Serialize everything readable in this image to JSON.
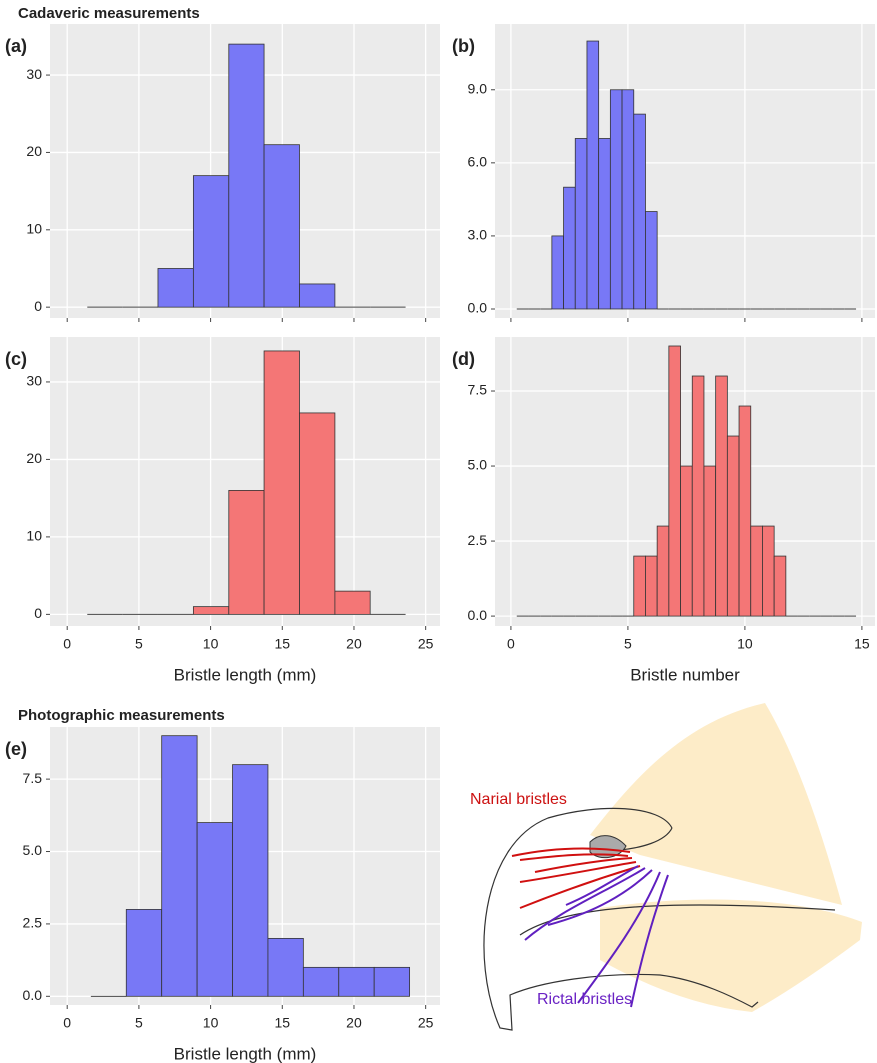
{
  "sections": [
    "Cadaveric measurements",
    "Photographic measurements"
  ],
  "diagram": {
    "labels": [
      "Narial bristles",
      "Rictal bristles"
    ]
  },
  "chart_data": [
    {
      "type": "histogram",
      "panel": "(a)",
      "color": "#7878f6",
      "grid": true,
      "xtick_labels": false,
      "bins": [
        1.4,
        3.87,
        6.33,
        8.8,
        11.27,
        13.73,
        16.2,
        18.67,
        21.13,
        23.6
      ],
      "counts": [
        0,
        0,
        5,
        17,
        34,
        21,
        3,
        0,
        0
      ],
      "xlim": [
        -1.2,
        26
      ],
      "xticks": [
        0,
        5,
        10,
        15,
        20,
        25
      ],
      "ylim": [
        -1.4,
        36.6
      ],
      "yticks": [
        0,
        10,
        20,
        30
      ]
    },
    {
      "type": "histogram",
      "panel": "(b)",
      "color": "#7878f6",
      "grid": true,
      "xtick_labels": false,
      "bins": [
        0.25,
        0.75,
        1.25,
        1.75,
        2.25,
        2.75,
        3.25,
        3.75,
        4.25,
        4.75,
        5.25,
        5.75,
        6.25,
        6.75,
        7.25,
        7.75,
        8.25,
        8.75,
        9.25,
        9.75,
        10.25,
        10.75,
        11.25,
        11.75,
        12.25,
        12.75,
        13.25,
        13.75,
        14.25,
        14.75
      ],
      "counts": [
        0,
        0,
        0,
        3,
        5,
        7,
        11,
        7,
        9,
        9,
        8,
        4,
        0,
        0,
        0,
        0,
        0,
        0,
        0,
        0,
        0,
        0,
        0,
        0,
        0,
        0,
        0,
        0,
        0
      ],
      "xlim": [
        -0.68,
        15.56
      ],
      "xticks": [
        0,
        5,
        10,
        15
      ],
      "ylim": [
        -0.37,
        11.7
      ],
      "yticks": [
        {
          "value": 0,
          "label": "0.0"
        },
        {
          "value": 3,
          "label": "3.0"
        },
        {
          "value": 6,
          "label": "6.0"
        },
        {
          "value": 9,
          "label": "9.0"
        }
      ]
    },
    {
      "type": "histogram",
      "panel": "(c)",
      "color": "#f47676",
      "grid": true,
      "x_label": "Bristle length (mm)",
      "bins": [
        1.4,
        3.87,
        6.33,
        8.8,
        11.27,
        13.73,
        16.2,
        18.67,
        21.13,
        23.6
      ],
      "counts": [
        0,
        0,
        0,
        1,
        16,
        34,
        26,
        3,
        0
      ],
      "xlim": [
        -1.2,
        26
      ],
      "xticks": [
        0,
        5,
        10,
        15,
        20,
        25
      ],
      "ylim": [
        -1.5,
        35.8
      ],
      "yticks": [
        0,
        10,
        20,
        30
      ]
    },
    {
      "type": "histogram",
      "panel": "(d)",
      "color": "#f47676",
      "grid": true,
      "x_label": "Bristle number",
      "bins": [
        0.25,
        0.75,
        1.25,
        1.75,
        2.25,
        2.75,
        3.25,
        3.75,
        4.25,
        4.75,
        5.25,
        5.75,
        6.25,
        6.75,
        7.25,
        7.75,
        8.25,
        8.75,
        9.25,
        9.75,
        10.25,
        10.75,
        11.25,
        11.75,
        12.25,
        12.75,
        13.25,
        13.75,
        14.25,
        14.75
      ],
      "counts": [
        0,
        0,
        0,
        0,
        0,
        0,
        0,
        0,
        0,
        0,
        2,
        2,
        3,
        9,
        5,
        8,
        5,
        8,
        6,
        7,
        3,
        3,
        2,
        0,
        0,
        0,
        0,
        0,
        0
      ],
      "xlim": [
        -0.68,
        15.56
      ],
      "xticks": [
        0,
        5,
        10,
        15
      ],
      "ylim": [
        -0.33,
        9.3
      ],
      "yticks": [
        {
          "value": 0,
          "label": "0.0"
        },
        2.5,
        {
          "value": 5,
          "label": "5.0"
        },
        7.5
      ]
    },
    {
      "type": "histogram",
      "panel": "(e)",
      "color": "#7878f6",
      "grid": true,
      "x_label": "Bristle length (mm)",
      "bins": [
        1.65,
        4.12,
        6.59,
        9.06,
        11.53,
        14,
        16.47,
        18.94,
        21.41,
        23.88
      ],
      "counts": [
        0,
        3,
        9,
        6,
        8,
        2,
        1,
        1,
        1
      ],
      "xlim": [
        -1.2,
        26
      ],
      "xticks": [
        0,
        5,
        10,
        15,
        20,
        25
      ],
      "ylim": [
        -0.3,
        9.3
      ],
      "yticks": [
        {
          "value": 0,
          "label": "0.0"
        },
        2.5,
        {
          "value": 5,
          "label": "5.0"
        },
        7.5
      ]
    }
  ]
}
